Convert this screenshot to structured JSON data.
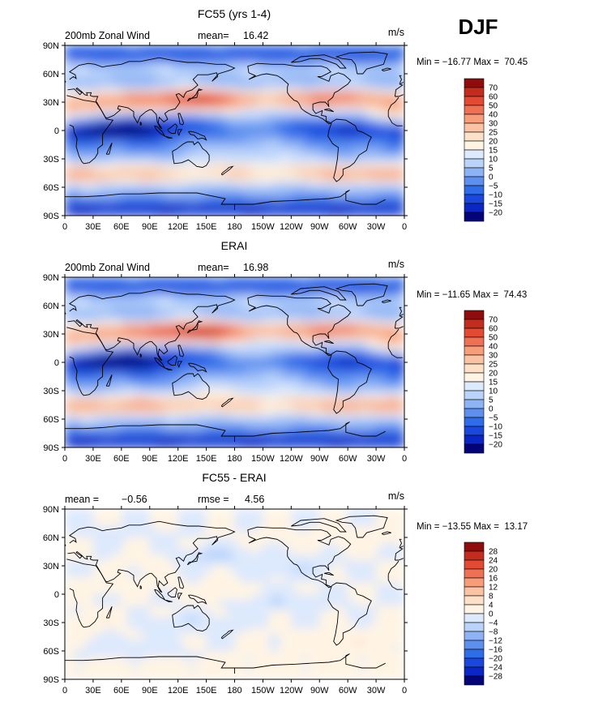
{
  "season": "DJF",
  "lat_ticks": [
    "90N",
    "60N",
    "30N",
    "0",
    "30S",
    "60S",
    "90S"
  ],
  "lon_ticks": [
    "0",
    "30E",
    "60E",
    "90E",
    "120E",
    "150E",
    "180",
    "150W",
    "120W",
    "90W",
    "60W",
    "30W",
    "0"
  ],
  "colors": {
    "negative": [
      "#03037a",
      "#0a26c4",
      "#1a48de",
      "#2f6de8",
      "#5d8ff0",
      "#8eb3f5",
      "#bad3fa",
      "#dde9fd"
    ],
    "positive": [
      "#fff4e4",
      "#fde0c8",
      "#fbc3a3",
      "#f79d7a",
      "#ef7053",
      "#e24a33",
      "#c42d1e",
      "#8e0c0c"
    ]
  },
  "chart_data": [
    {
      "type": "heatmap",
      "title": "FC55 (yrs 1-4)",
      "left_label": "200mb Zonal Wind",
      "stat_label": "mean=",
      "stat_value": "16.42",
      "units": "m/s",
      "minmax_text": "Min = −16.77 Max =  70.45",
      "min": -16.77,
      "max": 70.45,
      "colorbar_labels": [
        "70",
        "60",
        "50",
        "40",
        "30",
        "25",
        "20",
        "15",
        "10",
        "5",
        "0",
        "−5",
        "−10",
        "−15",
        "−20"
      ]
    },
    {
      "type": "heatmap",
      "title": "ERAI",
      "left_label": "200mb Zonal Wind",
      "stat_label": "mean=",
      "stat_value": "16.98",
      "units": "m/s",
      "minmax_text": "Min = −11.65 Max =  74.43",
      "min": -11.65,
      "max": 74.43,
      "colorbar_labels": [
        "70",
        "60",
        "50",
        "40",
        "30",
        "25",
        "20",
        "15",
        "10",
        "5",
        "0",
        "−5",
        "−10",
        "−15",
        "−20"
      ]
    },
    {
      "type": "heatmap",
      "title": "FC55 - ERAI",
      "left_label": "mean =",
      "left_value": "−0.56",
      "stat_label": "rmse =",
      "stat_value": "4.56",
      "units": "m/s",
      "minmax_text": "Min = −13.55 Max =  13.17",
      "min": -13.55,
      "max": 13.17,
      "colorbar_labels": [
        "28",
        "24",
        "20",
        "16",
        "12",
        "8",
        "4",
        "0",
        "−4",
        "−8",
        "−12",
        "−16",
        "−20",
        "−24",
        "−28"
      ]
    }
  ]
}
